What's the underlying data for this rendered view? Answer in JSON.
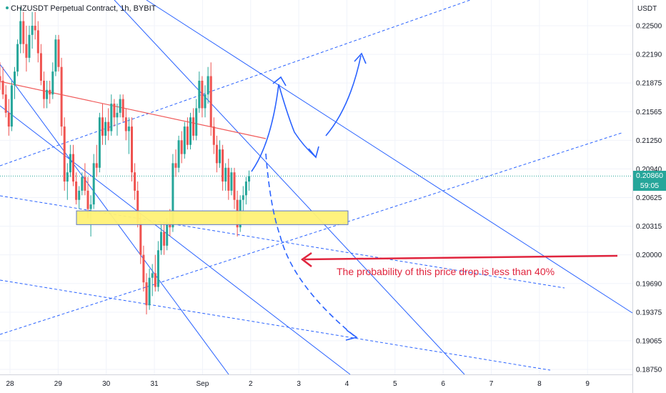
{
  "header": {
    "symbol": "CHZUSDT Perpetual Contract, 1h, BYBIT",
    "currency": "USDT"
  },
  "price_badge": {
    "price": "0.20860",
    "countdown": "59:05",
    "color": "#26a69a"
  },
  "annotation": {
    "text": "The probability of this price drop is less than 40%",
    "color": "#e0243d"
  },
  "colors": {
    "up": "#26a69a",
    "down": "#ef5350",
    "channel": "#2962ff",
    "drawn_arrow": "#2962ff",
    "zone_fill": "#fff176",
    "resistance": "#f05a5a"
  },
  "chart_data": {
    "type": "candlestick",
    "symbol": "CHZUSDT",
    "timeframe": "1h",
    "exchange": "BYBIT",
    "ylim": [
      0.1865,
      0.2265
    ],
    "yticks": [
      "0.22500",
      "0.22190",
      "0.21875",
      "0.21565",
      "0.21250",
      "0.20940",
      "0.20625",
      "0.20315",
      "0.20000",
      "0.19690",
      "0.19375",
      "0.19065",
      "0.18750"
    ],
    "xticks": [
      "28",
      "29",
      "30",
      "31",
      "Sep",
      "2",
      "3",
      "4",
      "5",
      "6",
      "7",
      "8",
      "9"
    ],
    "current_price": 0.2086,
    "support_zone": [
      0.2033,
      0.2048
    ],
    "candles_ohlc": [
      [
        0.2195,
        0.221,
        0.218,
        0.219
      ],
      [
        0.219,
        0.2205,
        0.217,
        0.2175
      ],
      [
        0.2175,
        0.2185,
        0.215,
        0.2155
      ],
      [
        0.2155,
        0.217,
        0.213,
        0.214
      ],
      [
        0.214,
        0.219,
        0.2135,
        0.2185
      ],
      [
        0.2185,
        0.2205,
        0.217,
        0.22
      ],
      [
        0.22,
        0.2235,
        0.2195,
        0.223
      ],
      [
        0.223,
        0.227,
        0.222,
        0.2255
      ],
      [
        0.2255,
        0.2265,
        0.222,
        0.223
      ],
      [
        0.223,
        0.225,
        0.22,
        0.2215
      ],
      [
        0.2215,
        0.225,
        0.221,
        0.224
      ],
      [
        0.224,
        0.2265,
        0.2225,
        0.225
      ],
      [
        0.225,
        0.2265,
        0.2235,
        0.2245
      ],
      [
        0.2245,
        0.2255,
        0.221,
        0.222
      ],
      [
        0.222,
        0.223,
        0.2185,
        0.219
      ],
      [
        0.219,
        0.22,
        0.216,
        0.217
      ],
      [
        0.217,
        0.219,
        0.216,
        0.218
      ],
      [
        0.218,
        0.219,
        0.2165,
        0.2175
      ],
      [
        0.2175,
        0.221,
        0.217,
        0.22
      ],
      [
        0.22,
        0.224,
        0.2195,
        0.2235
      ],
      [
        0.2235,
        0.224,
        0.22,
        0.2205
      ],
      [
        0.2205,
        0.2215,
        0.213,
        0.214
      ],
      [
        0.214,
        0.215,
        0.207,
        0.208
      ],
      [
        0.208,
        0.21,
        0.206,
        0.209
      ],
      [
        0.209,
        0.212,
        0.2085,
        0.211
      ],
      [
        0.211,
        0.212,
        0.2075,
        0.208
      ],
      [
        0.208,
        0.209,
        0.2055,
        0.206
      ],
      [
        0.206,
        0.2075,
        0.205,
        0.207
      ],
      [
        0.207,
        0.209,
        0.2065,
        0.2085
      ],
      [
        0.2085,
        0.21,
        0.2065,
        0.207
      ],
      [
        0.207,
        0.2085,
        0.204,
        0.205
      ],
      [
        0.205,
        0.2065,
        0.202,
        0.2055
      ],
      [
        0.2055,
        0.211,
        0.205,
        0.21
      ],
      [
        0.21,
        0.212,
        0.2085,
        0.2095
      ],
      [
        0.2095,
        0.2155,
        0.209,
        0.215
      ],
      [
        0.215,
        0.2165,
        0.212,
        0.213
      ],
      [
        0.213,
        0.215,
        0.212,
        0.2145
      ],
      [
        0.2145,
        0.216,
        0.2125,
        0.2135
      ],
      [
        0.2135,
        0.2175,
        0.213,
        0.2165
      ],
      [
        0.2165,
        0.217,
        0.214,
        0.215
      ],
      [
        0.215,
        0.2165,
        0.213,
        0.2155
      ],
      [
        0.2155,
        0.2175,
        0.215,
        0.217
      ],
      [
        0.217,
        0.2175,
        0.2145,
        0.215
      ],
      [
        0.215,
        0.216,
        0.2125,
        0.2135
      ],
      [
        0.2135,
        0.215,
        0.211,
        0.214
      ],
      [
        0.214,
        0.215,
        0.208,
        0.209
      ],
      [
        0.209,
        0.21,
        0.206,
        0.207
      ],
      [
        0.207,
        0.208,
        0.203,
        0.2035
      ],
      [
        0.2035,
        0.2045,
        0.199,
        0.2
      ],
      [
        0.2,
        0.201,
        0.196,
        0.197
      ],
      [
        0.197,
        0.198,
        0.1935,
        0.1945
      ],
      [
        0.1945,
        0.1985,
        0.194,
        0.1975
      ],
      [
        0.1975,
        0.199,
        0.1955,
        0.198
      ],
      [
        0.198,
        0.2,
        0.196,
        0.1965
      ],
      [
        0.1965,
        0.2015,
        0.196,
        0.2005
      ],
      [
        0.2005,
        0.2035,
        0.2,
        0.2025
      ],
      [
        0.2025,
        0.2035,
        0.2,
        0.201
      ],
      [
        0.201,
        0.204,
        0.2005,
        0.2035
      ],
      [
        0.2035,
        0.205,
        0.202,
        0.203
      ],
      [
        0.203,
        0.211,
        0.2025,
        0.21
      ],
      [
        0.21,
        0.2115,
        0.2085,
        0.2095
      ],
      [
        0.2095,
        0.213,
        0.209,
        0.2125
      ],
      [
        0.2125,
        0.2135,
        0.21,
        0.211
      ],
      [
        0.211,
        0.2145,
        0.2105,
        0.214
      ],
      [
        0.214,
        0.215,
        0.2115,
        0.212
      ],
      [
        0.212,
        0.2155,
        0.2115,
        0.215
      ],
      [
        0.215,
        0.216,
        0.2125,
        0.213
      ],
      [
        0.213,
        0.217,
        0.2125,
        0.216
      ],
      [
        0.216,
        0.22,
        0.2155,
        0.219
      ],
      [
        0.219,
        0.2195,
        0.215,
        0.216
      ],
      [
        0.216,
        0.2185,
        0.215,
        0.2175
      ],
      [
        0.2175,
        0.2205,
        0.2165,
        0.2195
      ],
      [
        0.2195,
        0.221,
        0.213,
        0.214
      ],
      [
        0.214,
        0.215,
        0.211,
        0.212
      ],
      [
        0.212,
        0.213,
        0.209,
        0.21
      ],
      [
        0.21,
        0.2125,
        0.2095,
        0.2115
      ],
      [
        0.2115,
        0.212,
        0.207,
        0.208
      ],
      [
        0.208,
        0.21,
        0.207,
        0.2095
      ],
      [
        0.2095,
        0.2105,
        0.206,
        0.207
      ],
      [
        0.207,
        0.2095,
        0.2065,
        0.209
      ],
      [
        0.209,
        0.2095,
        0.205,
        0.206
      ],
      [
        0.206,
        0.207,
        0.202,
        0.203
      ],
      [
        0.203,
        0.2065,
        0.2025,
        0.206
      ],
      [
        0.206,
        0.2075,
        0.2045,
        0.2065
      ],
      [
        0.2065,
        0.2085,
        0.2055,
        0.208
      ],
      [
        0.208,
        0.2092,
        0.207,
        0.2086
      ]
    ]
  }
}
